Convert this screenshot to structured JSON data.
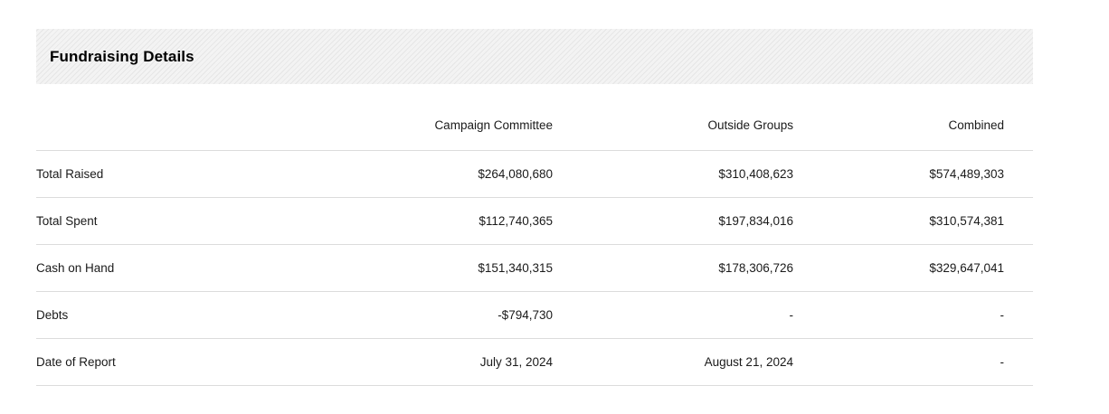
{
  "section": {
    "title": "Fundraising Details"
  },
  "table": {
    "columns": [
      "",
      "Campaign Committee",
      "Outside Groups",
      "Combined"
    ],
    "rows": [
      {
        "label": "Total Raised",
        "campaign_committee": "$264,080,680",
        "outside_groups": "$310,408,623",
        "combined": "$574,489,303"
      },
      {
        "label": "Total Spent",
        "campaign_committee": "$112,740,365",
        "outside_groups": "$197,834,016",
        "combined": "$310,574,381"
      },
      {
        "label": "Cash on Hand",
        "campaign_committee": "$151,340,315",
        "outside_groups": "$178,306,726",
        "combined": "$329,647,041"
      },
      {
        "label": "Debts",
        "campaign_committee": "-$794,730",
        "outside_groups": "-",
        "combined": "-"
      },
      {
        "label": "Date of Report",
        "campaign_committee": "July 31, 2024",
        "outside_groups": "August 21, 2024",
        "combined": "-"
      }
    ]
  }
}
